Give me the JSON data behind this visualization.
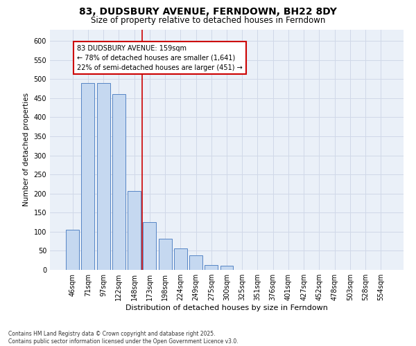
{
  "title": "83, DUDSBURY AVENUE, FERNDOWN, BH22 8DY",
  "subtitle": "Size of property relative to detached houses in Ferndown",
  "xlabel": "Distribution of detached houses by size in Ferndown",
  "ylabel": "Number of detached properties",
  "footnote": "Contains HM Land Registry data © Crown copyright and database right 2025.\nContains public sector information licensed under the Open Government Licence v3.0.",
  "categories": [
    "46sqm",
    "71sqm",
    "97sqm",
    "122sqm",
    "148sqm",
    "173sqm",
    "198sqm",
    "224sqm",
    "249sqm",
    "275sqm",
    "300sqm",
    "325sqm",
    "351sqm",
    "376sqm",
    "401sqm",
    "427sqm",
    "452sqm",
    "478sqm",
    "503sqm",
    "528sqm",
    "554sqm"
  ],
  "values": [
    105,
    490,
    490,
    460,
    207,
    125,
    82,
    57,
    38,
    12,
    10,
    0,
    0,
    0,
    0,
    0,
    0,
    0,
    0,
    0,
    0
  ],
  "bar_color": "#c5d8f0",
  "bar_edge_color": "#5585c5",
  "grid_color": "#d0d8e8",
  "bg_color": "#eaf0f8",
  "red_line_x": 4.5,
  "red_line_color": "#cc0000",
  "annotation_line1": "83 DUDSBURY AVENUE: 159sqm",
  "annotation_line2": "← 78% of detached houses are smaller (1,641)",
  "annotation_line3": "22% of semi-detached houses are larger (451) →",
  "annotation_box_color": "#cc0000",
  "ylim": [
    0,
    630
  ],
  "yticks": [
    0,
    50,
    100,
    150,
    200,
    250,
    300,
    350,
    400,
    450,
    500,
    550,
    600
  ],
  "title_fontsize": 10,
  "subtitle_fontsize": 8.5,
  "xlabel_fontsize": 8,
  "ylabel_fontsize": 7.5,
  "tick_fontsize": 7,
  "annotation_fontsize": 7,
  "footnote_fontsize": 5.5
}
